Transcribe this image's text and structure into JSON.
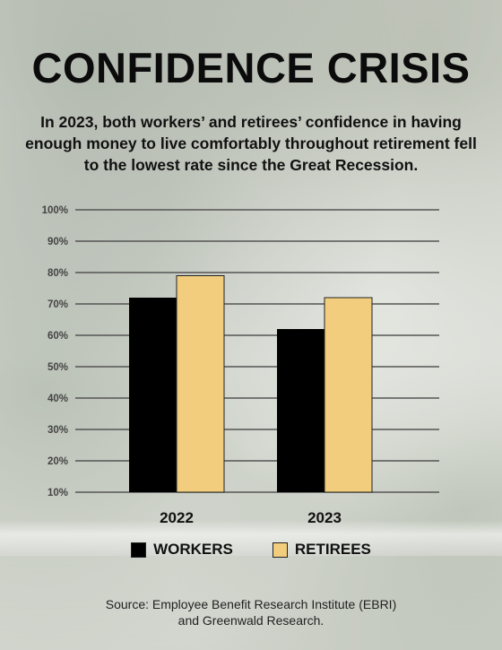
{
  "title": "CONFIDENCE CRISIS",
  "subtitle": "In 2023, both workers’ and retirees’ confidence in having enough money to live comfortably throughout retirement fell to the lowest rate since the Great Recession.",
  "source": {
    "line1": "Source: Employee Benefit Research Institute (EBRI)",
    "line2": "and Greenwald Research."
  },
  "colors": {
    "workers": "#000000",
    "retirees": "#f3cd7e",
    "grid": "#555555"
  },
  "chart_data": {
    "type": "bar",
    "categories": [
      "2022",
      "2023"
    ],
    "series": [
      {
        "name": "WORKERS",
        "values": [
          72,
          62
        ],
        "color": "#000000"
      },
      {
        "name": "RETIREES",
        "values": [
          79,
          72
        ],
        "color": "#f3cd7e"
      }
    ],
    "yticks": [
      "10%",
      "20%",
      "30%",
      "40%",
      "50%",
      "60%",
      "70%",
      "80%",
      "90%",
      "100%"
    ],
    "ylim": [
      10,
      100
    ],
    "grid": true,
    "legend_position": "bottom"
  }
}
